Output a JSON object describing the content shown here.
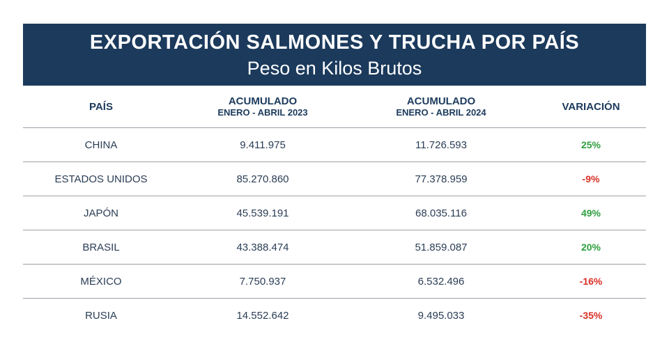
{
  "header": {
    "title": "EXPORTACIÓN SALMONES Y TRUCHA POR PAÍS",
    "subtitle": "Peso en Kilos Brutos"
  },
  "colors": {
    "banner": "#1b3a5c",
    "positive": "#2e9e3e",
    "negative": "#d93025"
  },
  "chart_data": {
    "type": "table",
    "title": "EXPORTACIÓN SALMONES Y TRUCHA POR PAÍS",
    "subtitle": "Peso en Kilos Brutos",
    "columns": [
      {
        "line1": "PAÍS",
        "line2": ""
      },
      {
        "line1": "ACUMULADO",
        "line2": "ENERO - ABRIL 2023"
      },
      {
        "line1": "ACUMULADO",
        "line2": "ENERO - ABRIL 2024"
      },
      {
        "line1": "VARIACIÓN",
        "line2": ""
      }
    ],
    "rows": [
      {
        "country": "CHINA",
        "y2023": "9.411.975",
        "y2024": "11.726.593",
        "variation": "25%",
        "sign": "pos"
      },
      {
        "country": "ESTADOS UNIDOS",
        "y2023": "85.270.860",
        "y2024": "77.378.959",
        "variation": "-9%",
        "sign": "neg"
      },
      {
        "country": "JAPÓN",
        "y2023": "45.539.191",
        "y2024": "68.035.116",
        "variation": "49%",
        "sign": "pos"
      },
      {
        "country": "BRASIL",
        "y2023": "43.388.474",
        "y2024": "51.859.087",
        "variation": "20%",
        "sign": "pos"
      },
      {
        "country": "MÉXICO",
        "y2023": "7.750.937",
        "y2024": "6.532.496",
        "variation": "-16%",
        "sign": "neg"
      },
      {
        "country": "RUSIA",
        "y2023": "14.552.642",
        "y2024": "9.495.033",
        "variation": "-35%",
        "sign": "neg"
      }
    ]
  }
}
